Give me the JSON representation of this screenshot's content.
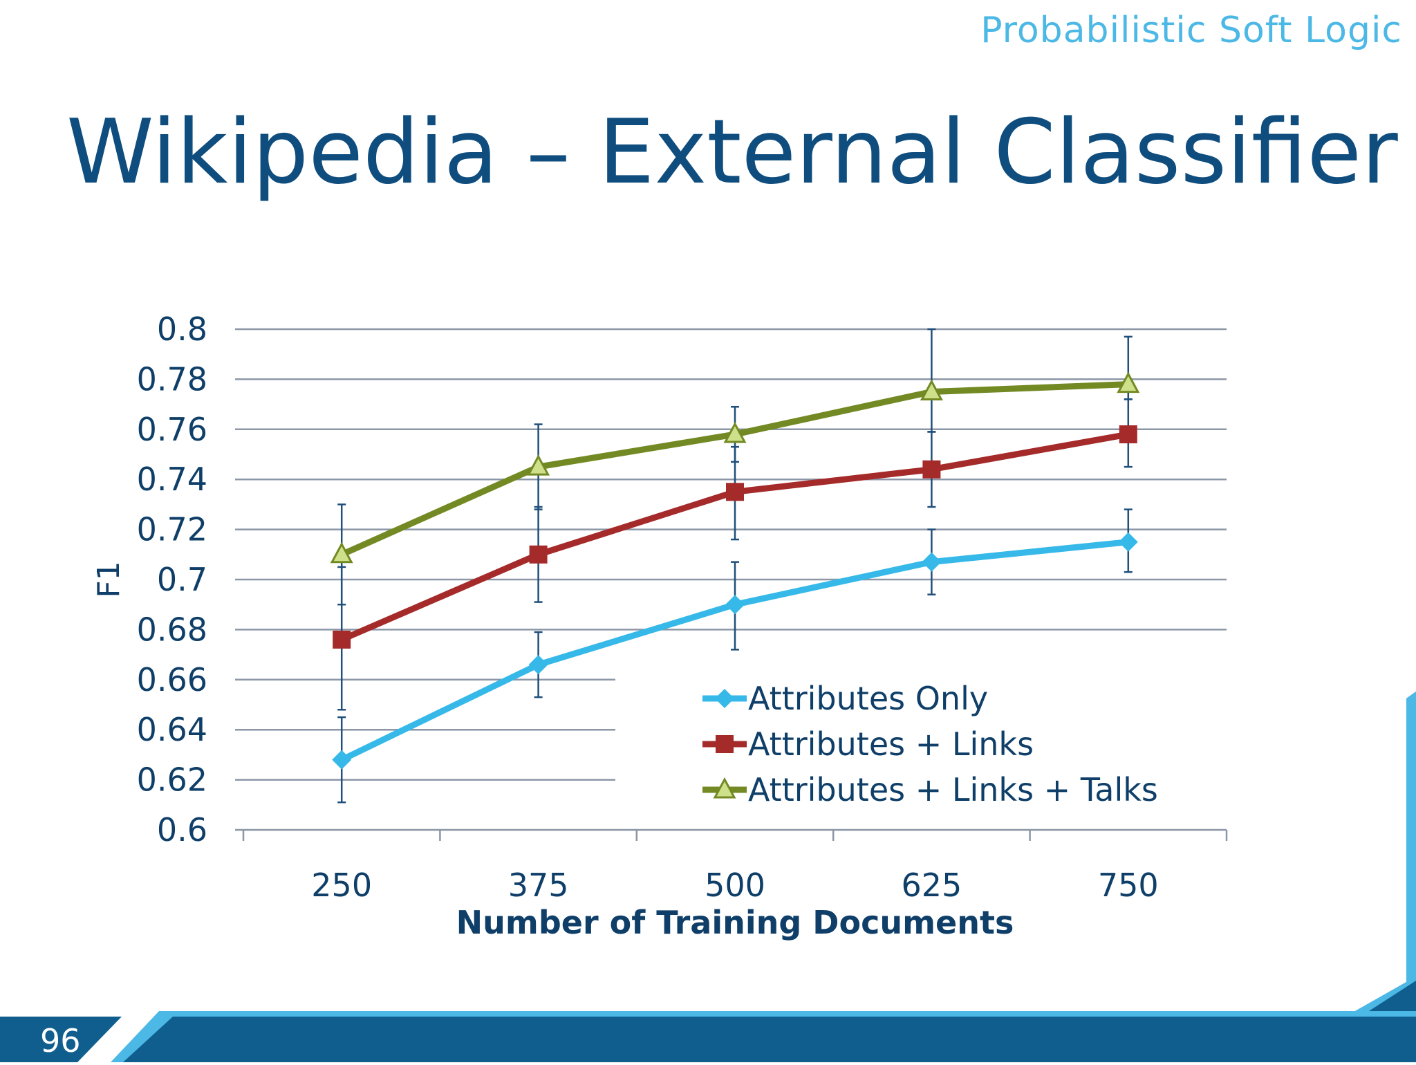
{
  "slide": {
    "brand": "Probabilistic Soft Logic",
    "title": "Wikipedia – External Classifier",
    "page_number": "96"
  },
  "colors": {
    "title": "#0f4d7e",
    "brand": "#4cb8e6",
    "footer_dark": "#0f5e8e",
    "footer_light": "#4cb8e6"
  },
  "chart_data": {
    "type": "line",
    "title": "",
    "xlabel": "Number of Training Documents",
    "ylabel": "F1",
    "categories": [
      "250",
      "375",
      "500",
      "625",
      "750"
    ],
    "ylim": [
      0.6,
      0.8
    ],
    "yticks": [
      "0.8",
      "0.78",
      "0.76",
      "0.74",
      "0.72",
      "0.7",
      "0.68",
      "0.66",
      "0.64",
      "0.62",
      "0.6"
    ],
    "grid": true,
    "legend_position": "bottom-right",
    "series": [
      {
        "name": "Attributes Only",
        "color": "#36b9e8",
        "marker": "diamond",
        "values": [
          0.628,
          0.666,
          0.69,
          0.707,
          0.715
        ],
        "err_low": [
          0.611,
          0.653,
          0.672,
          0.694,
          0.703
        ],
        "err_high": [
          0.645,
          0.679,
          0.707,
          0.72,
          0.728
        ]
      },
      {
        "name": "Attributes + Links",
        "color": "#a52a2a",
        "marker": "square",
        "values": [
          0.676,
          0.71,
          0.735,
          0.744,
          0.758
        ],
        "err_low": [
          0.648,
          0.691,
          0.716,
          0.729,
          0.745
        ],
        "err_high": [
          0.705,
          0.729,
          0.753,
          0.759,
          0.772
        ]
      },
      {
        "name": "Attributes + Links + Talks",
        "color": "#738a24",
        "marker": "triangle",
        "values": [
          0.71,
          0.745,
          0.758,
          0.775,
          0.778
        ],
        "err_low": [
          0.69,
          0.728,
          0.747,
          0.759,
          0.772
        ],
        "err_high": [
          0.73,
          0.762,
          0.769,
          0.8,
          0.797
        ]
      }
    ]
  }
}
